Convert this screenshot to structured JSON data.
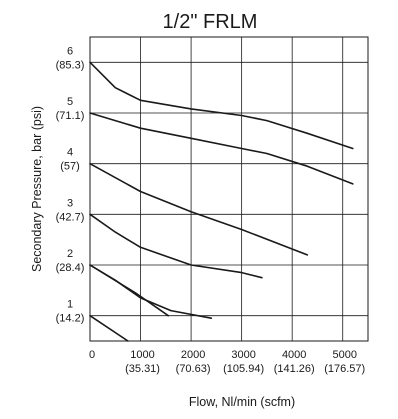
{
  "chart_data": {
    "type": "line",
    "title": "1/2\" FRLM",
    "xlabel": "Flow, Nl/min (scfm)",
    "ylabel": "Secondary Pressure, bar (psi)",
    "xlim": [
      0,
      5500
    ],
    "ylim": [
      0.5,
      6.5
    ],
    "grid": true,
    "legend": "none",
    "x_ticks": [
      {
        "value": 0,
        "label": "0",
        "sublabel": ""
      },
      {
        "value": 1000,
        "label": "1000",
        "sublabel": "(35.31)"
      },
      {
        "value": 2000,
        "label": "2000",
        "sublabel": "(70.63)"
      },
      {
        "value": 3000,
        "label": "3000",
        "sublabel": "(105.94)"
      },
      {
        "value": 4000,
        "label": "4000",
        "sublabel": "(141.26)"
      },
      {
        "value": 5000,
        "label": "5000",
        "sublabel": "(176.57)"
      }
    ],
    "y_ticks": [
      {
        "value": 1,
        "label": "1",
        "sublabel": "(14.2)"
      },
      {
        "value": 2,
        "label": "2",
        "sublabel": "(28.4)"
      },
      {
        "value": 3,
        "label": "3",
        "sublabel": "(42.7)"
      },
      {
        "value": 4,
        "label": "4",
        "sublabel": "(57)"
      },
      {
        "value": 5,
        "label": "5",
        "sublabel": "(71.1)"
      },
      {
        "value": 6,
        "label": "6",
        "sublabel": "(85.3)"
      }
    ],
    "series": [
      {
        "x": [
          0,
          750
        ],
        "y": [
          1.0,
          0.5
        ]
      },
      {
        "x": [
          0,
          900,
          1550
        ],
        "y": [
          2.0,
          1.45,
          1.0
        ]
      },
      {
        "x": [
          0,
          500,
          1000,
          1600,
          2400
        ],
        "y": [
          2.0,
          1.7,
          1.35,
          1.1,
          0.95
        ]
      },
      {
        "x": [
          0,
          500,
          1000,
          2000,
          3000,
          3400
        ],
        "y": [
          3.0,
          2.65,
          2.35,
          2.0,
          1.85,
          1.75
        ]
      },
      {
        "x": [
          0,
          1000,
          2000,
          3000,
          4300
        ],
        "y": [
          4.0,
          3.45,
          3.05,
          2.7,
          2.2
        ]
      },
      {
        "x": [
          0,
          500,
          1000,
          2000,
          3000,
          3500,
          4300,
          5200
        ],
        "y": [
          5.0,
          4.85,
          4.7,
          4.5,
          4.3,
          4.2,
          3.95,
          3.6
        ]
      },
      {
        "x": [
          0,
          500,
          1000,
          2000,
          3000,
          3500,
          4300,
          5200
        ],
        "y": [
          6.0,
          5.5,
          5.25,
          5.08,
          4.95,
          4.85,
          4.6,
          4.3
        ]
      }
    ]
  }
}
